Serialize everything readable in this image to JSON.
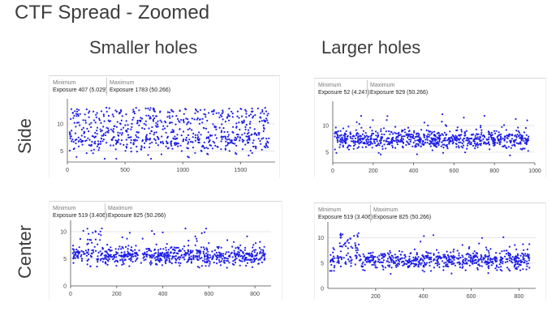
{
  "title": "CTF Spread - Zoomed",
  "columns": [
    "Smaller holes",
    "Larger holes"
  ],
  "rows": [
    "Side",
    "Center"
  ],
  "colors": {
    "points": "#1f1fe6",
    "axis": "#555555",
    "grid": "#e6e6e6"
  },
  "chart_data": [
    {
      "type": "scatter",
      "row": "Side",
      "column": "Smaller holes",
      "minimum_label": "Minimum",
      "minimum_value": "Exposure 407 (5.029)",
      "maximum_label": "Maximum",
      "maximum_value": "Exposure 1783 (50.266)",
      "xlim": [
        0,
        1800
      ],
      "xticks": [
        0,
        500,
        1000,
        1500
      ],
      "ylim": [
        3,
        14
      ],
      "yticks": [
        5,
        10
      ],
      "n_points": 700,
      "base_mean": 7.4,
      "base_sd": 1.4,
      "outlier_fraction": 0.3,
      "outlier_range": [
        10,
        13
      ],
      "early_bump": null
    },
    {
      "type": "scatter",
      "row": "Side",
      "column": "Larger holes",
      "minimum_label": "Minimum",
      "minimum_value": "Exposure 52 (4.247)",
      "maximum_label": "Maximum",
      "maximum_value": "Exposure 929 (50.266)",
      "xlim": [
        0,
        1000
      ],
      "xticks": [
        0,
        200,
        400,
        600,
        800,
        1000
      ],
      "ylim": [
        3,
        14
      ],
      "yticks": [
        5,
        10
      ],
      "n_points": 780,
      "base_mean": 7.4,
      "base_sd": 0.9,
      "outlier_fraction": 0.02,
      "outlier_range": [
        9.5,
        12.5
      ],
      "early_bump": null
    },
    {
      "type": "scatter",
      "row": "Center",
      "column": "Smaller holes",
      "minimum_label": "Minimum",
      "minimum_value": "Exposure 519 (3.406)",
      "maximum_label": "Maximum",
      "maximum_value": "Exposure 825 (50.266)",
      "xlim": [
        0,
        870
      ],
      "xticks": [
        0,
        200,
        400,
        600,
        800
      ],
      "ylim": [
        0,
        11.5
      ],
      "yticks": [
        0,
        5,
        10
      ],
      "n_points": 720,
      "base_mean": 5.6,
      "base_sd": 0.9,
      "outlier_fraction": 0.02,
      "outlier_range": [
        8,
        10.8
      ],
      "early_bump": [
        50,
        130,
        7.5,
        10.8
      ]
    },
    {
      "type": "scatter",
      "row": "Center",
      "column": "Larger holes",
      "minimum_label": "Minimum",
      "minimum_value": "Exposure 519 (3.406)",
      "maximum_label": "Maximum",
      "maximum_value": "Exposure 825 (50.266)",
      "xlim": [
        0,
        870
      ],
      "xticks": [
        200,
        400,
        600,
        800
      ],
      "ylim": [
        0,
        12.5
      ],
      "yticks": [
        0,
        5,
        10
      ],
      "n_points": 720,
      "base_mean": 5.6,
      "base_sd": 0.9,
      "outlier_fraction": 0.02,
      "outlier_range": [
        8,
        10.8
      ],
      "early_bump": [
        50,
        130,
        7.5,
        11
      ]
    }
  ]
}
